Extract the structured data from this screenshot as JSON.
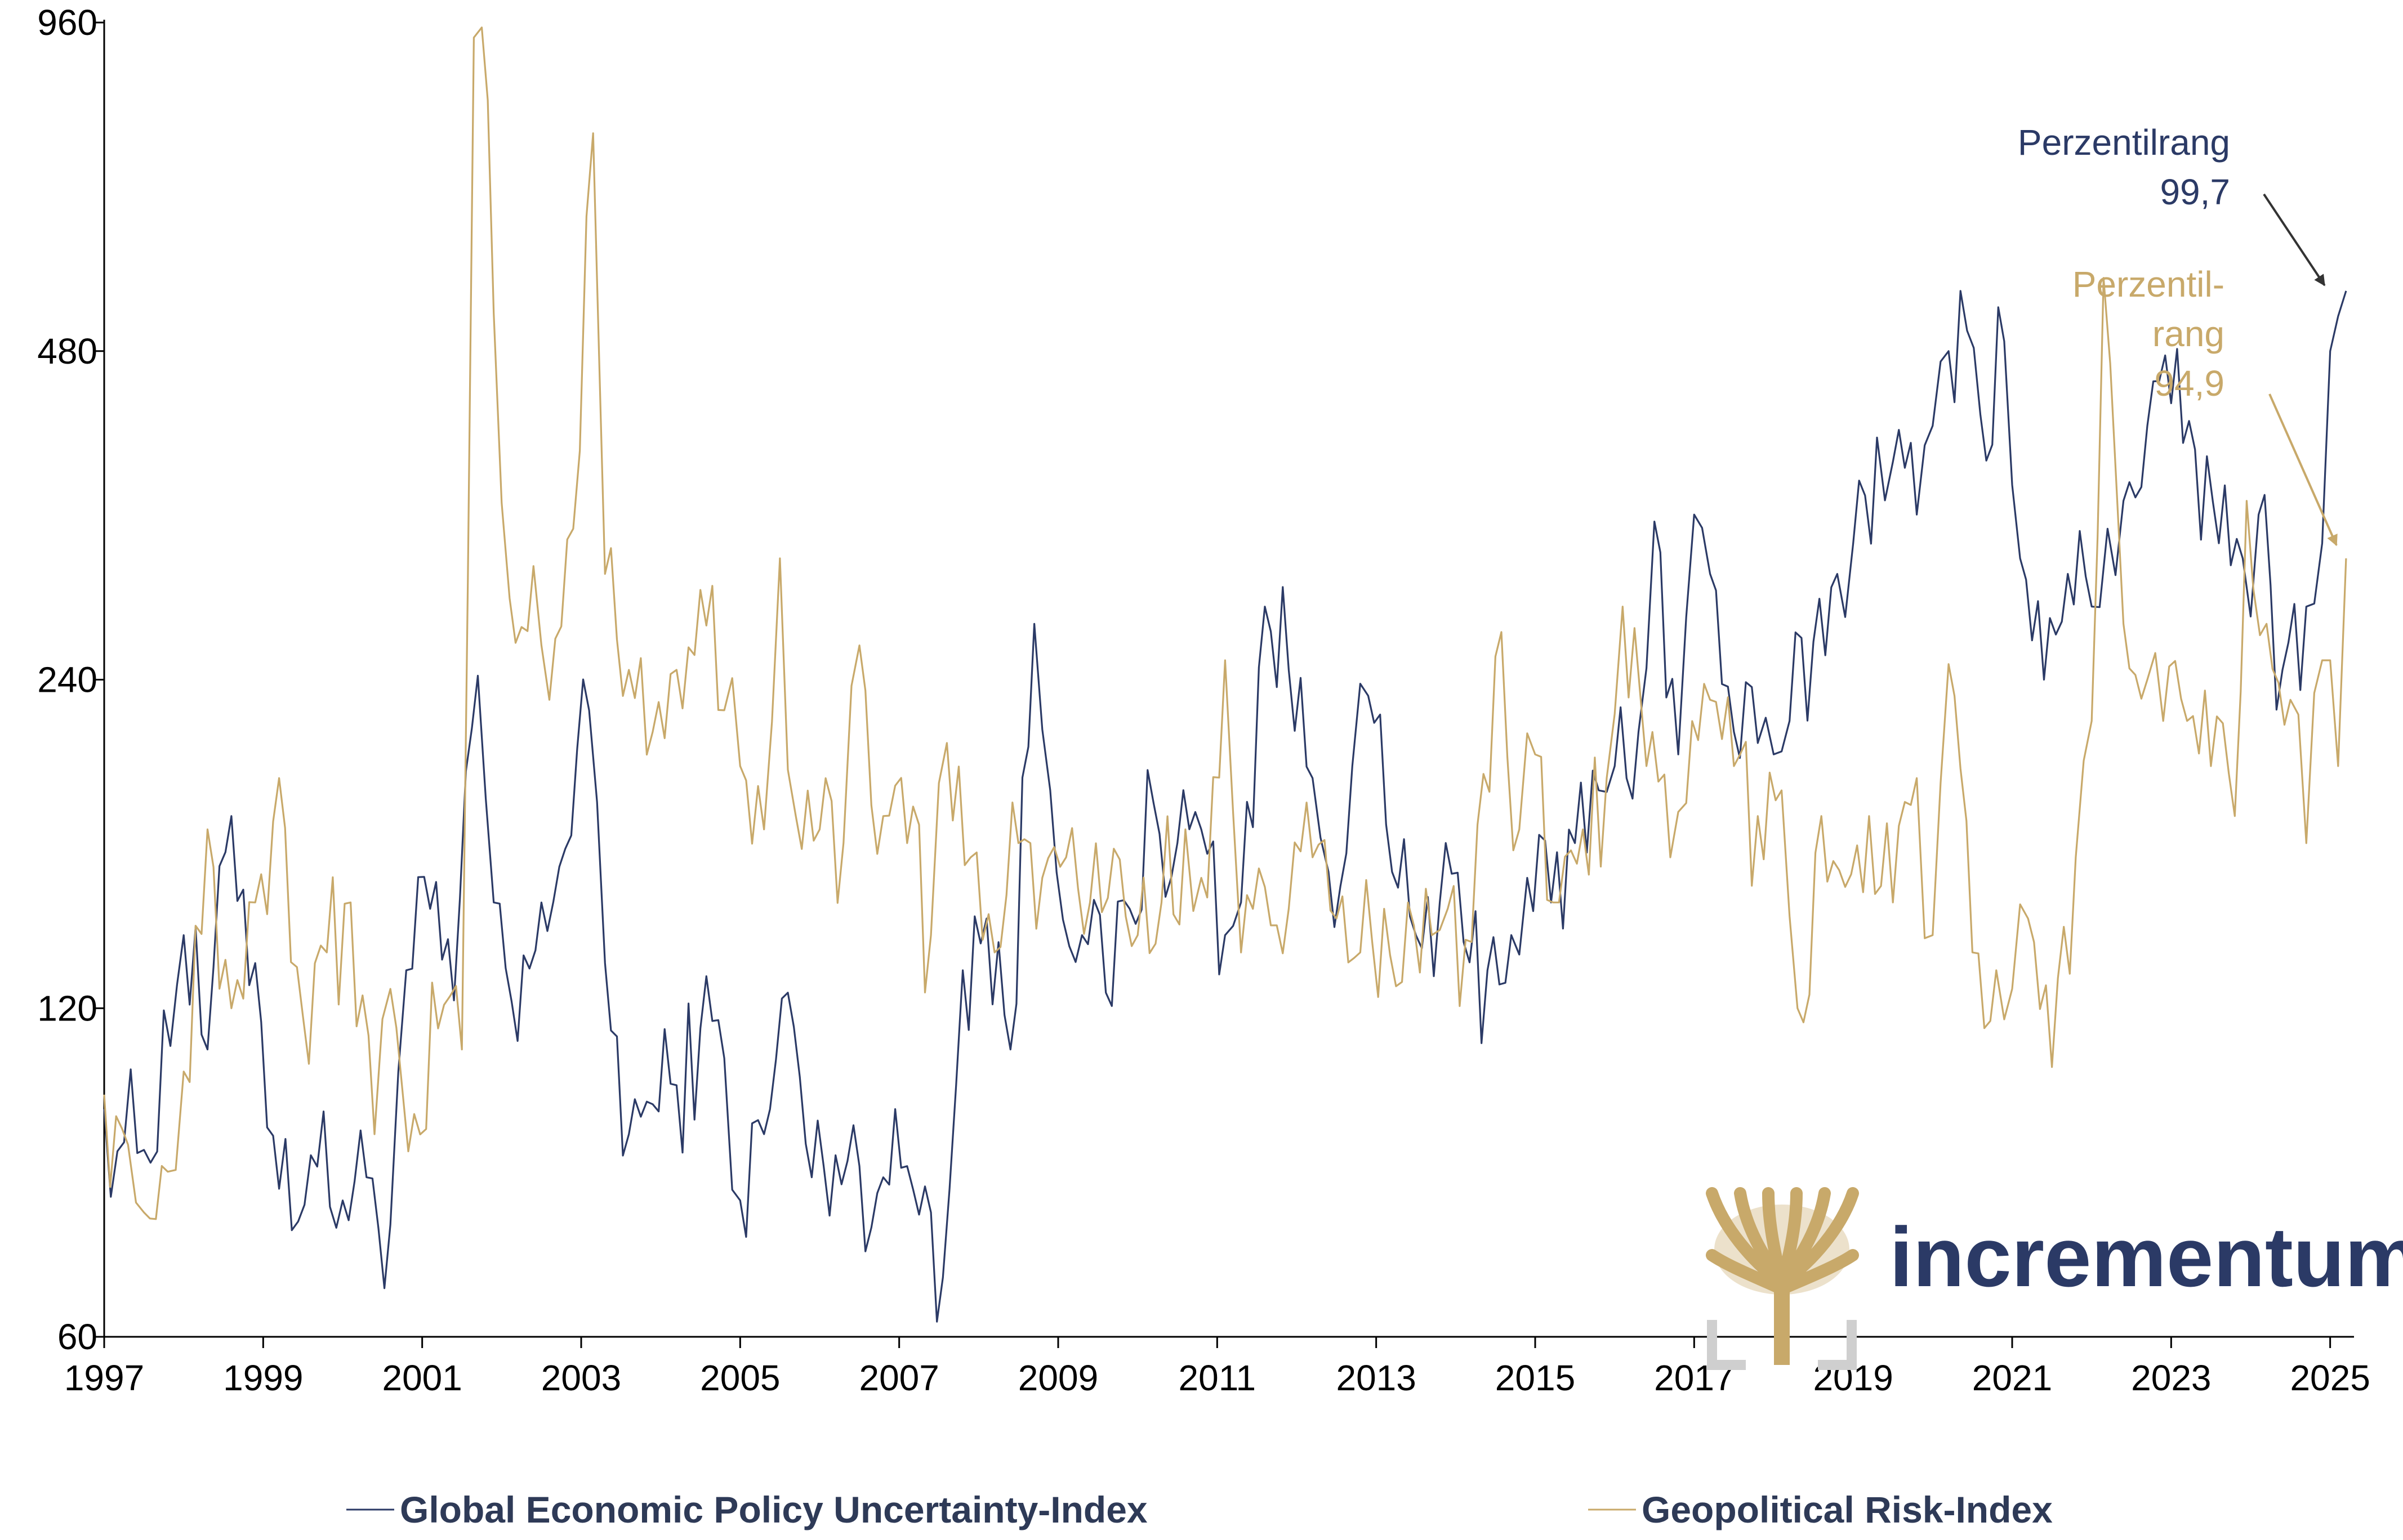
{
  "chart_data": {
    "type": "line",
    "title": "",
    "xlabel": "",
    "ylabel": "",
    "y_scale": "log",
    "ylim": [
      60,
      960
    ],
    "xlim": [
      1997,
      2025.3
    ],
    "y_ticks": [
      60,
      120,
      240,
      480,
      960
    ],
    "x_ticks": [
      1997,
      1999,
      2001,
      2003,
      2005,
      2007,
      2009,
      2011,
      2013,
      2015,
      2017,
      2019,
      2021,
      2023,
      2025
    ],
    "grid": false,
    "legend_position": "bottom",
    "series": [
      {
        "name": "Global Economic Policy Uncertainty-Index",
        "color": "#2b3a66",
        "points": [
          [
            1997.0,
            97
          ],
          [
            1997.5,
            89
          ],
          [
            1998.0,
            140
          ],
          [
            1998.3,
            110
          ],
          [
            1998.6,
            180
          ],
          [
            1998.9,
            132
          ],
          [
            1999.2,
            82
          ],
          [
            1999.6,
            88
          ],
          [
            2000.0,
            80
          ],
          [
            2000.3,
            84
          ],
          [
            2000.6,
            76
          ],
          [
            2000.8,
            130
          ],
          [
            2001.1,
            148
          ],
          [
            2001.4,
            122
          ],
          [
            2001.7,
            242
          ],
          [
            2001.9,
            150
          ],
          [
            2002.2,
            112
          ],
          [
            2002.5,
            150
          ],
          [
            2002.8,
            168
          ],
          [
            2003.1,
            225
          ],
          [
            2003.3,
            132
          ],
          [
            2003.6,
            92
          ],
          [
            2003.9,
            98
          ],
          [
            2004.2,
            102
          ],
          [
            2004.5,
            115
          ],
          [
            2004.8,
            108
          ],
          [
            2005.0,
            80
          ],
          [
            2005.3,
            92
          ],
          [
            2005.6,
            124
          ],
          [
            2005.9,
            84
          ],
          [
            2006.2,
            88
          ],
          [
            2006.5,
            86
          ],
          [
            2006.8,
            84
          ],
          [
            2007.1,
            86
          ],
          [
            2007.4,
            78
          ],
          [
            2007.55,
            68
          ],
          [
            2007.8,
            130
          ],
          [
            2008.1,
            145
          ],
          [
            2008.4,
            110
          ],
          [
            2008.7,
            270
          ],
          [
            2008.9,
            190
          ],
          [
            2009.3,
            140
          ],
          [
            2009.6,
            124
          ],
          [
            2009.9,
            148
          ],
          [
            2010.2,
            185
          ],
          [
            2010.5,
            170
          ],
          [
            2010.8,
            175
          ],
          [
            2011.1,
            140
          ],
          [
            2011.3,
            150
          ],
          [
            2011.6,
            280
          ],
          [
            2011.9,
            245
          ],
          [
            2012.2,
            195
          ],
          [
            2012.4,
            160
          ],
          [
            2012.7,
            200
          ],
          [
            2012.9,
            232
          ],
          [
            2013.2,
            160
          ],
          [
            2013.5,
            140
          ],
          [
            2013.8,
            150
          ],
          [
            2014.1,
            138
          ],
          [
            2014.4,
            130
          ],
          [
            2014.7,
            140
          ],
          [
            2014.9,
            158
          ],
          [
            2015.2,
            150
          ],
          [
            2015.5,
            170
          ],
          [
            2015.8,
            190
          ],
          [
            2016.0,
            200
          ],
          [
            2016.3,
            215
          ],
          [
            2016.5,
            335
          ],
          [
            2016.8,
            205
          ],
          [
            2017.0,
            340
          ],
          [
            2017.2,
            300
          ],
          [
            2017.5,
            215
          ],
          [
            2017.8,
            210
          ],
          [
            2018.0,
            205
          ],
          [
            2018.2,
            220
          ],
          [
            2018.5,
            260
          ],
          [
            2018.8,
            300
          ],
          [
            2019.0,
            320
          ],
          [
            2019.3,
            400
          ],
          [
            2019.5,
            380
          ],
          [
            2019.8,
            340
          ],
          [
            2020.0,
            410
          ],
          [
            2020.2,
            480
          ],
          [
            2020.35,
            545
          ],
          [
            2020.6,
            420
          ],
          [
            2020.9,
            490
          ],
          [
            2021.1,
            310
          ],
          [
            2021.4,
            240
          ],
          [
            2021.7,
            300
          ],
          [
            2022.0,
            280
          ],
          [
            2022.2,
            330
          ],
          [
            2022.4,
            350
          ],
          [
            2022.7,
            410
          ],
          [
            2023.0,
            430
          ],
          [
            2023.3,
            390
          ],
          [
            2023.6,
            320
          ],
          [
            2023.9,
            310
          ],
          [
            2024.1,
            340
          ],
          [
            2024.4,
            245
          ],
          [
            2024.7,
            280
          ],
          [
            2024.9,
            320
          ],
          [
            2025.0,
            480
          ],
          [
            2025.2,
            545
          ]
        ]
      },
      {
        "name": "Geopolitical Risk-Index",
        "color": "#c8a96a",
        "points": [
          [
            1997.0,
            100
          ],
          [
            1997.3,
            90
          ],
          [
            1997.5,
            78
          ],
          [
            1997.8,
            85
          ],
          [
            1998.0,
            105
          ],
          [
            1998.3,
            175
          ],
          [
            1998.6,
            120
          ],
          [
            1998.9,
            150
          ],
          [
            1999.2,
            195
          ],
          [
            1999.5,
            118
          ],
          [
            1999.8,
            135
          ],
          [
            2000.1,
            150
          ],
          [
            2000.4,
            92
          ],
          [
            2000.6,
            125
          ],
          [
            2000.9,
            96
          ],
          [
            2001.2,
            115
          ],
          [
            2001.5,
            110
          ],
          [
            2001.65,
            930
          ],
          [
            2001.75,
            950
          ],
          [
            2001.9,
            520
          ],
          [
            2002.1,
            285
          ],
          [
            2002.4,
            305
          ],
          [
            2002.6,
            230
          ],
          [
            2002.9,
            330
          ],
          [
            2003.15,
            760
          ],
          [
            2003.3,
            300
          ],
          [
            2003.6,
            245
          ],
          [
            2003.9,
            215
          ],
          [
            2004.2,
            245
          ],
          [
            2004.5,
            290
          ],
          [
            2004.8,
            225
          ],
          [
            2005.0,
            200
          ],
          [
            2005.3,
            175
          ],
          [
            2005.5,
            310
          ],
          [
            2005.7,
            180
          ],
          [
            2006.0,
            175
          ],
          [
            2006.3,
            170
          ],
          [
            2006.5,
            258
          ],
          [
            2006.8,
            180
          ],
          [
            2007.1,
            170
          ],
          [
            2007.4,
            140
          ],
          [
            2007.6,
            210
          ],
          [
            2007.9,
            165
          ],
          [
            2008.2,
            135
          ],
          [
            2008.5,
            170
          ],
          [
            2008.8,
            158
          ],
          [
            2009.1,
            165
          ],
          [
            2009.4,
            150
          ],
          [
            2009.7,
            168
          ],
          [
            2010.0,
            140
          ],
          [
            2010.3,
            150
          ],
          [
            2010.6,
            175
          ],
          [
            2010.8,
            158
          ],
          [
            2011.1,
            250
          ],
          [
            2011.3,
            135
          ],
          [
            2011.6,
            155
          ],
          [
            2011.9,
            148
          ],
          [
            2012.2,
            165
          ],
          [
            2012.5,
            145
          ],
          [
            2012.8,
            135
          ],
          [
            2013.1,
            148
          ],
          [
            2013.4,
            150
          ],
          [
            2013.7,
            140
          ],
          [
            2013.9,
            148
          ],
          [
            2014.2,
            138
          ],
          [
            2014.5,
            252
          ],
          [
            2014.8,
            175
          ],
          [
            2015.0,
            205
          ],
          [
            2015.3,
            150
          ],
          [
            2015.6,
            175
          ],
          [
            2015.9,
            195
          ],
          [
            2016.1,
            280
          ],
          [
            2016.4,
            200
          ],
          [
            2016.7,
            165
          ],
          [
            2016.9,
            185
          ],
          [
            2017.2,
            230
          ],
          [
            2017.5,
            200
          ],
          [
            2017.8,
            180
          ],
          [
            2018.1,
            190
          ],
          [
            2018.3,
            120
          ],
          [
            2018.6,
            180
          ],
          [
            2018.9,
            155
          ],
          [
            2019.2,
            180
          ],
          [
            2019.5,
            150
          ],
          [
            2019.8,
            195
          ],
          [
            2020.0,
            140
          ],
          [
            2020.2,
            248
          ],
          [
            2020.5,
            135
          ],
          [
            2020.8,
            130
          ],
          [
            2021.0,
            125
          ],
          [
            2021.2,
            145
          ],
          [
            2021.5,
            106
          ],
          [
            2021.8,
            165
          ],
          [
            2022.0,
            220
          ],
          [
            2022.15,
            560
          ],
          [
            2022.4,
            270
          ],
          [
            2022.7,
            240
          ],
          [
            2022.9,
            220
          ],
          [
            2023.2,
            220
          ],
          [
            2023.5,
            200
          ],
          [
            2023.8,
            180
          ],
          [
            2023.95,
            350
          ],
          [
            2024.2,
            270
          ],
          [
            2024.5,
            230
          ],
          [
            2024.7,
            170
          ],
          [
            2024.9,
            250
          ],
          [
            2025.0,
            250
          ],
          [
            2025.1,
            200
          ],
          [
            2025.2,
            310
          ]
        ]
      }
    ],
    "annotations": [
      {
        "text_lines": [
          "Perzentilrang",
          "99,7"
        ],
        "series": "Global Economic Policy Uncertainty-Index",
        "point": [
          2025.0,
          545
        ],
        "color": "#2b3a66"
      },
      {
        "text_lines": [
          "Perzentil-",
          "rang",
          "94,9"
        ],
        "series": "Geopolitical Risk-Index",
        "point": [
          2025.15,
          315
        ],
        "color": "#c8a96a"
      }
    ]
  },
  "brand": {
    "name": "incrementum",
    "logo_icon": "tree-icon",
    "text_color": "#2b3a66",
    "logo_color": "#c8a96a"
  }
}
